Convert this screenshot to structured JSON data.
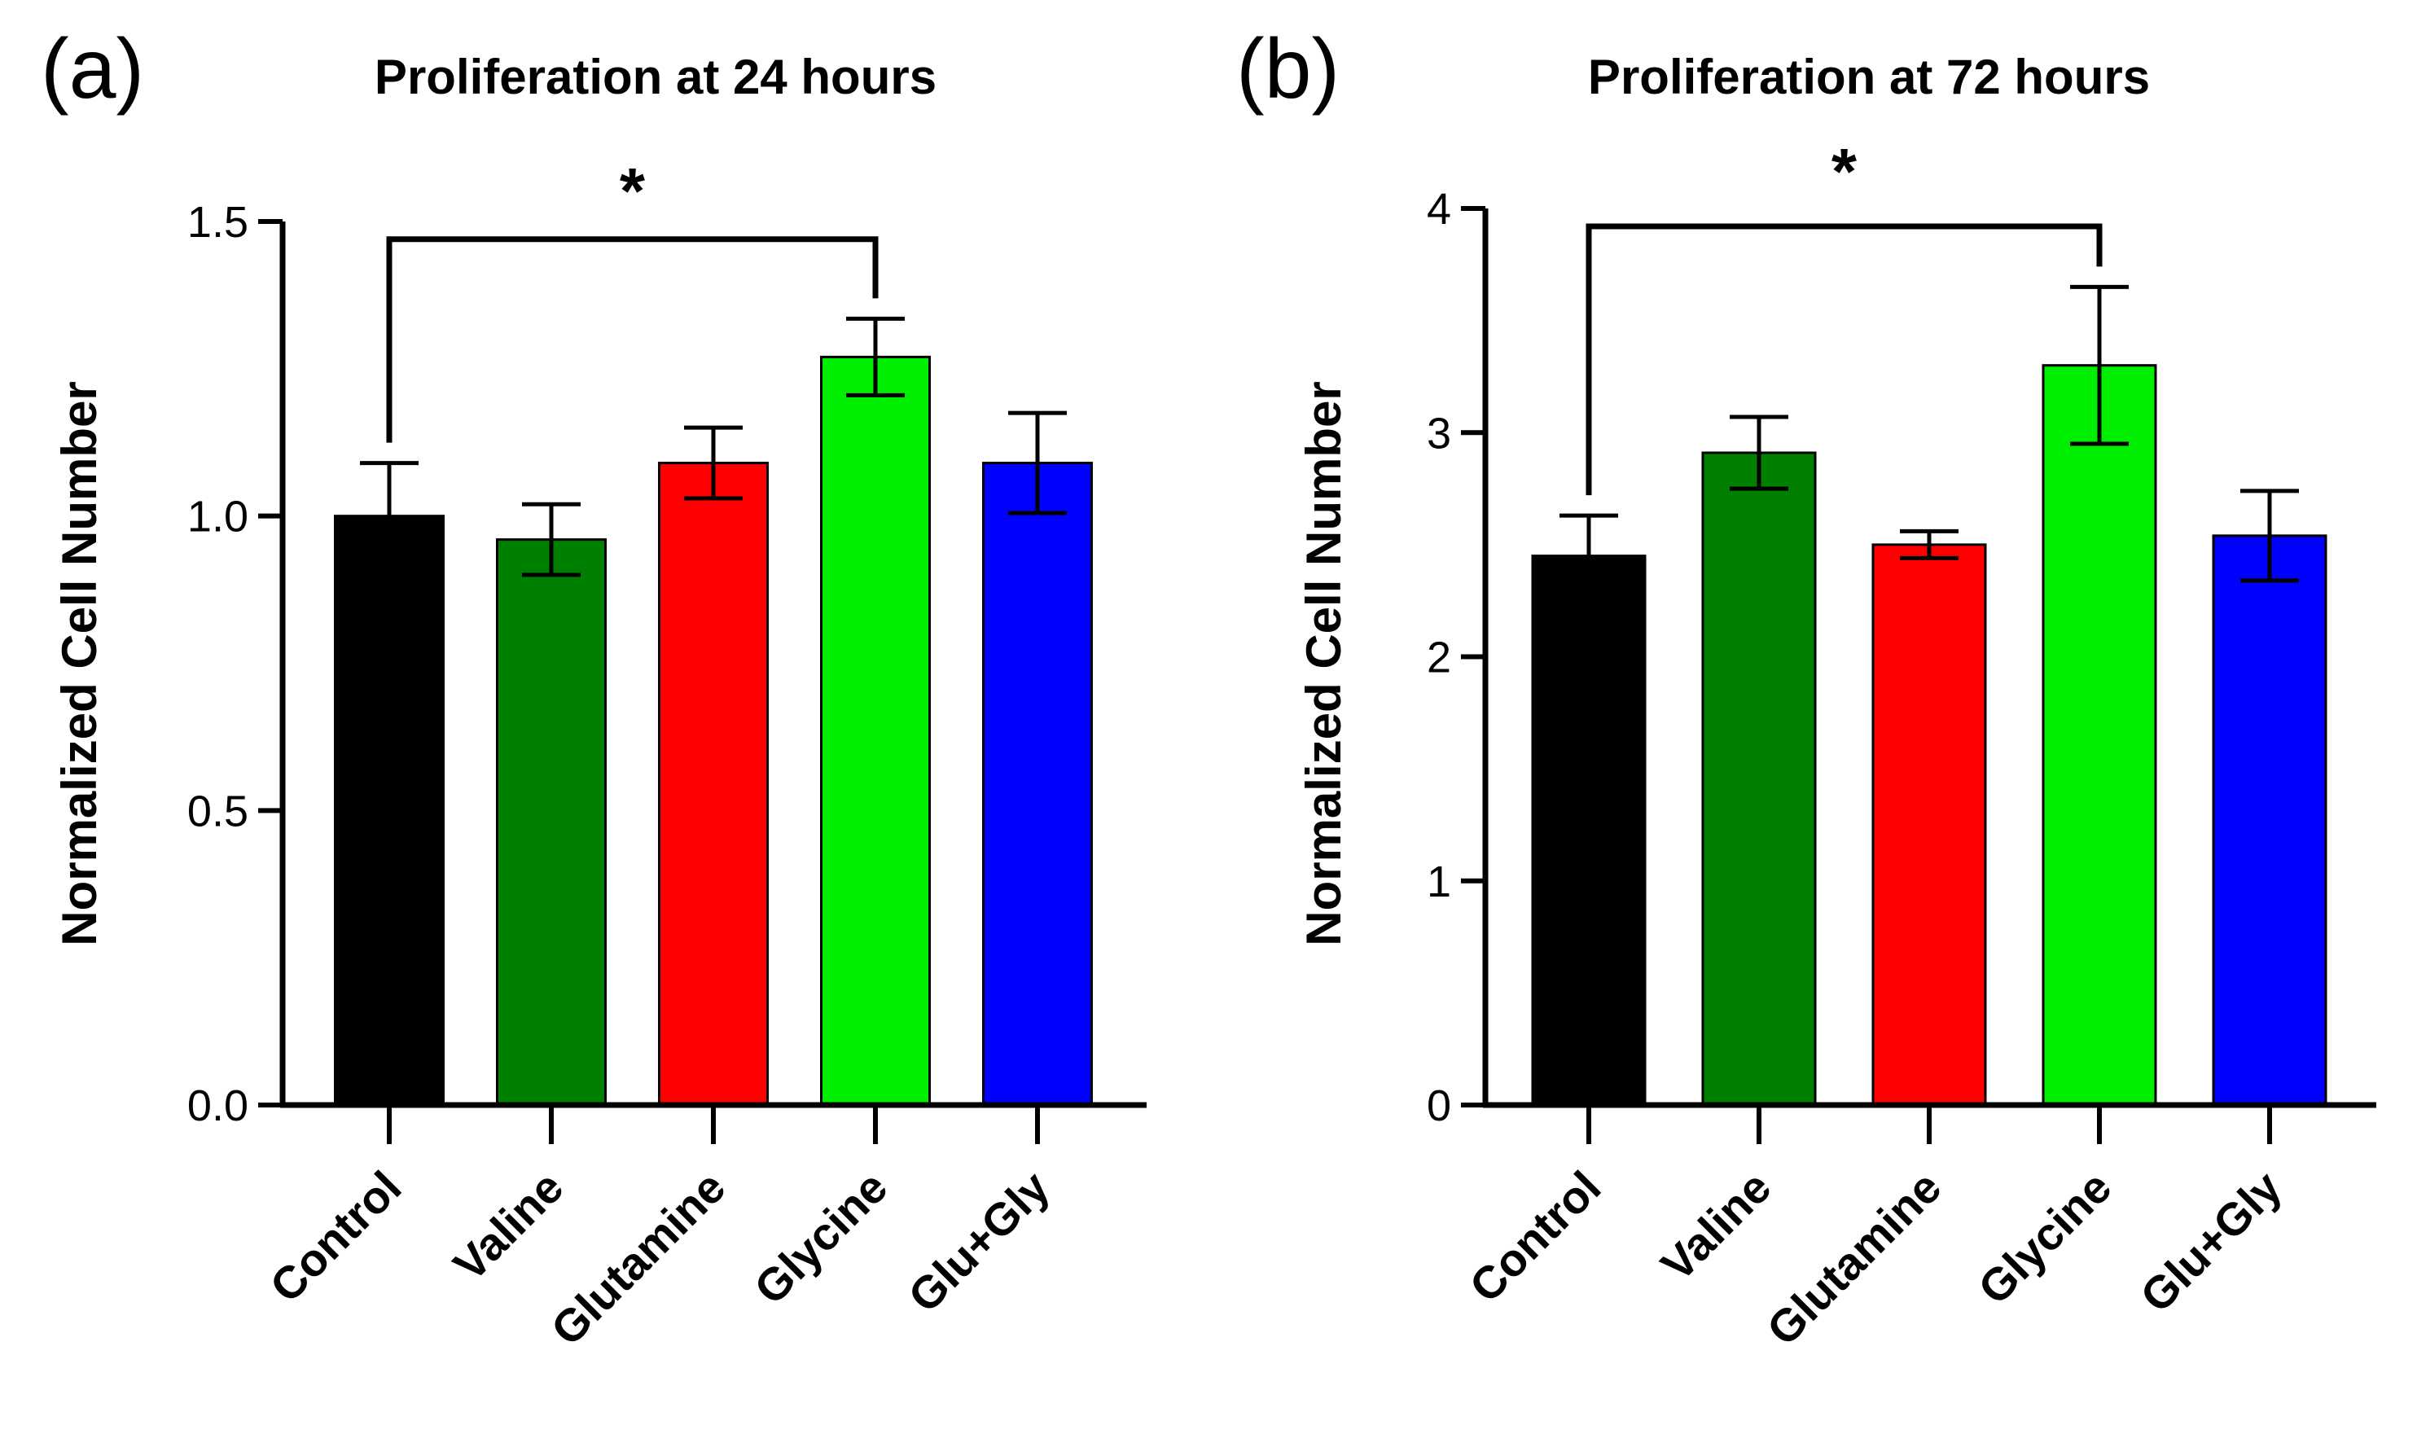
{
  "chart_data": [
    {
      "type": "bar",
      "panel": "(a)",
      "title": "Proliferation at 24 hours",
      "xlabel": "",
      "ylabel": "Normalized Cell Number",
      "ylim": [
        0,
        1.5
      ],
      "yticks": [
        0.0,
        0.5,
        1.0,
        1.5
      ],
      "ytick_labels": [
        "0.0",
        "0.5",
        "1.0",
        "1.5"
      ],
      "categories": [
        "Control",
        "Valine",
        "Glutamine",
        "Glycine",
        "Glu+Gly"
      ],
      "values": [
        1.0,
        0.96,
        1.09,
        1.27,
        1.09
      ],
      "errors": [
        0.09,
        0.06,
        0.06,
        0.065,
        0.085
      ],
      "colors": [
        "#000000",
        "#008000",
        "#ff0000",
        "#00ee00",
        "#0000ff"
      ],
      "significance": {
        "from": 0,
        "to": 3,
        "y": 1.47,
        "label": "*"
      },
      "grid": false
    },
    {
      "type": "bar",
      "panel": "(b)",
      "title": "Proliferation at 72 hours",
      "xlabel": "",
      "ylabel": "Normalized Cell Number",
      "ylim": [
        0,
        4
      ],
      "yticks": [
        0,
        1,
        2,
        3,
        4
      ],
      "ytick_labels": [
        "0",
        "1",
        "2",
        "3",
        "4"
      ],
      "categories": [
        "Control",
        "Valine",
        "Glutamine",
        "Glycine",
        "Glu+Gly"
      ],
      "values": [
        2.45,
        2.91,
        2.5,
        3.3,
        2.54
      ],
      "errors": [
        0.18,
        0.16,
        0.06,
        0.35,
        0.2
      ],
      "colors": [
        "#000000",
        "#008000",
        "#ff0000",
        "#00ee00",
        "#0000ff"
      ],
      "significance": {
        "from": 0,
        "to": 3,
        "y": 3.92,
        "label": "*"
      },
      "grid": false
    }
  ]
}
